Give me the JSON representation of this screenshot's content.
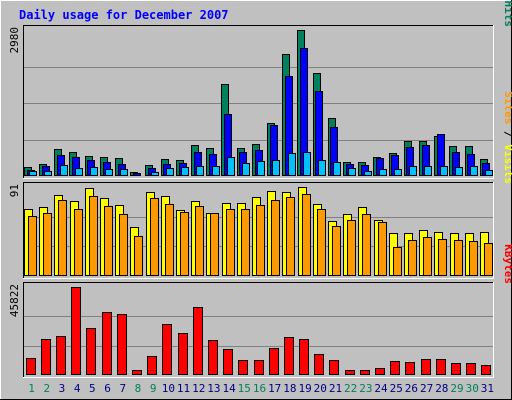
{
  "chart_data": {
    "type": "bar",
    "title": "Daily usage for December 2007",
    "categories": [
      "1",
      "2",
      "3",
      "4",
      "5",
      "6",
      "7",
      "8",
      "9",
      "10",
      "11",
      "12",
      "13",
      "14",
      "15",
      "16",
      "17",
      "18",
      "19",
      "20",
      "21",
      "22",
      "23",
      "24",
      "25",
      "26",
      "27",
      "28",
      "29",
      "30",
      "31"
    ],
    "weekend_days": [
      "1",
      "2",
      "8",
      "9",
      "15",
      "16",
      "22",
      "23",
      "29",
      "30"
    ],
    "panels": [
      {
        "id": "hits",
        "max_label": "2980",
        "ylim": [
          0,
          2980
        ],
        "series": [
          {
            "name": "Hits",
            "color": "#00805c",
            "values": [
              180,
              250,
              550,
              480,
              410,
              390,
              360,
              90,
              220,
              340,
              320,
              640,
              580,
              1870,
              580,
              650,
              1080,
              2500,
              2980,
              2110,
              1180,
              290,
              290,
              390,
              460,
              720,
              720,
              820,
              620,
              610,
              350
            ]
          },
          {
            "name": "Files",
            "color": "#0000ff",
            "values": [
              120,
              210,
              430,
              380,
              330,
              290,
              250,
              60,
              170,
              250,
              270,
              500,
              450,
              1260,
              480,
              540,
              1040,
              2050,
              2610,
              1740,
              990,
              240,
              220,
              360,
              430,
              590,
              630,
              850,
              500,
              440,
              270
            ]
          },
          {
            "name": "Pages",
            "color": "#00c0ff",
            "values": [
              100,
              110,
              230,
              170,
              180,
              150,
              150,
              30,
              90,
              170,
              190,
              210,
              200,
              390,
              270,
              310,
              330,
              470,
              500,
              320,
              290,
              160,
              100,
              150,
              150,
              200,
              210,
              200,
              180,
              200,
              120
            ]
          }
        ],
        "axis_label_parts": [
          {
            "text": "Pages",
            "color": "#00c0ff"
          },
          {
            "text": " / ",
            "color": "#000000"
          },
          {
            "text": "Files",
            "color": "#0000ff"
          },
          {
            "text": " / ",
            "color": "#000000"
          },
          {
            "text": "Hits",
            "color": "#00805c"
          }
        ]
      },
      {
        "id": "visits",
        "max_label": "91",
        "ylim": [
          0,
          91
        ],
        "series": [
          {
            "name": "Visits",
            "color": "#ffff00",
            "values": [
              68,
              71,
              83,
              77,
              90,
              80,
              73,
              50,
              86,
              82,
              67,
              77,
              64,
              75,
              75,
              81,
              87,
              86,
              91,
              74,
              56,
              63,
              71,
              57,
              44,
              44,
              47,
              45,
              44,
              44,
              45
            ]
          },
          {
            "name": "Sites",
            "color": "#ff9900",
            "values": [
              61,
              64,
              78,
              68,
              82,
              72,
              63,
              41,
              80,
              74,
              65,
              72,
              64,
              68,
              68,
              73,
              78,
              81,
              84,
              68,
              51,
              57,
              63,
              55,
              30,
              37,
              40,
              38,
              37,
              36,
              34
            ]
          }
        ],
        "axis_label_parts": [
          {
            "text": "Sites",
            "color": "#ff9900"
          },
          {
            "text": " / ",
            "color": "#000000"
          },
          {
            "text": "Visits",
            "color": "#ffff00"
          }
        ]
      },
      {
        "id": "kbytes",
        "max_label": "45822",
        "ylim": [
          0,
          45822
        ],
        "series": [
          {
            "name": "KBytes",
            "color": "#ff0000",
            "values": [
              8900,
              18700,
              20300,
              45822,
              24500,
              33000,
              31700,
              2700,
              10000,
              26700,
              21700,
              35400,
              18400,
              13600,
              8000,
              7600,
              14000,
              19600,
              18600,
              10700,
              7600,
              2800,
              2700,
              3700,
              7200,
              6900,
              8300,
              8300,
              6200,
              6200,
              5300
            ]
          }
        ],
        "axis_label_parts": [
          {
            "text": "KBytes",
            "color": "#ff0000"
          }
        ]
      }
    ]
  },
  "colors": {
    "background": "#c0c0c0",
    "title": "#0000ff",
    "weekday_label": "#000080",
    "weekend_label": "#00805c",
    "grid": "#808080"
  }
}
